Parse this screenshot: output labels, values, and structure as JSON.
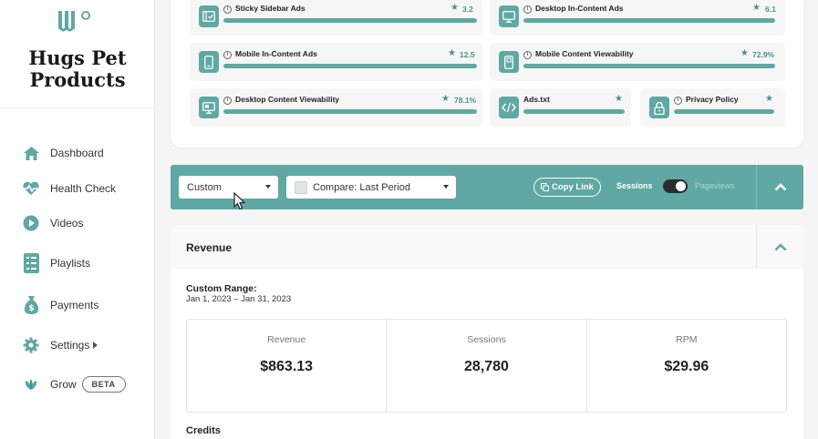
{
  "brand": {
    "name_line1": "Hugs Pet",
    "name_line2": "Products"
  },
  "sidebar": {
    "items": [
      {
        "label": "Dashboard",
        "icon": "home-icon"
      },
      {
        "label": "Health Check",
        "icon": "heartbeat-icon"
      },
      {
        "label": "Videos",
        "icon": "play-circle-icon"
      },
      {
        "label": "Playlists",
        "icon": "list-icon"
      },
      {
        "label": "Payments",
        "icon": "money-bag-icon"
      },
      {
        "label": "Settings",
        "icon": "gear-icon"
      },
      {
        "label": "Grow",
        "icon": "leaf-icon",
        "badge": "BETA"
      }
    ]
  },
  "metrics": [
    {
      "label": "Sticky Sidebar Ads",
      "value": "3.2",
      "icon": "sidebar-ad-icon",
      "fill": 1.0
    },
    {
      "label": "Desktop In-Content Ads",
      "value": "6.1",
      "icon": "desktop-icon",
      "fill": 1.0
    },
    {
      "label": "Mobile In-Content Ads",
      "value": "12.5",
      "icon": "mobile-icon",
      "fill": 1.0
    },
    {
      "label": "Mobile Content Viewability",
      "value": "72.9%",
      "icon": "mobile-view-icon",
      "fill": 1.0
    },
    {
      "label": "Desktop Content Viewability",
      "value": "78.1%",
      "icon": "desktop-view-icon",
      "fill": 1.0
    },
    {
      "label": "Ads.txt",
      "value": "",
      "icon": "code-icon",
      "fill": 1.0
    },
    {
      "label": "Privacy Policy",
      "value": "",
      "icon": "lock-icon",
      "fill": 1.0
    }
  ],
  "filters": {
    "range_select": "Custom",
    "compare_select": "Compare: Last Period",
    "copy_link": "Copy Link",
    "toggle_left": "Sessions",
    "toggle_right": "Pageviews"
  },
  "revenue": {
    "title": "Revenue",
    "range_title": "Custom Range:",
    "range_dates": "Jan 1, 2023 – Jan 31, 2023",
    "stats": [
      {
        "label": "Revenue",
        "value": "$863.13"
      },
      {
        "label": "Sessions",
        "value": "28,780"
      },
      {
        "label": "RPM",
        "value": "$29.96"
      }
    ],
    "credits_title": "Credits"
  },
  "colors": {
    "accent": "#5fa8a3",
    "accent_dark": "#4f8f8b"
  }
}
